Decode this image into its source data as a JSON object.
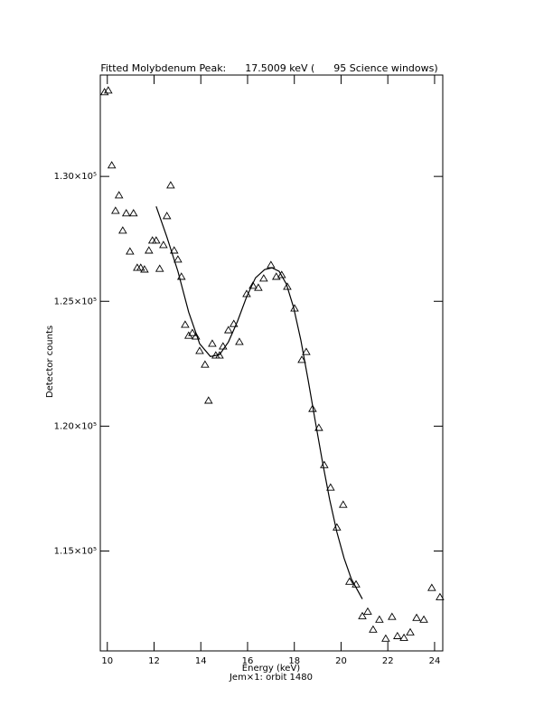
{
  "chart_data": {
    "type": "scatter",
    "title": "Fitted Molybdenum Peak:      17.5009 keV (      95 Science windows)",
    "x_label": "Energy (keV)",
    "subtitle": "Jem×1: orbit 1480",
    "y_label": "Detector counts",
    "xlim": [
      9.7,
      24.35
    ],
    "ylim": [
      111000,
      134060
    ],
    "xticks": [
      10,
      12,
      14,
      16,
      18,
      20,
      22,
      24
    ],
    "yticks": [
      {
        "value": 115000,
        "label": "1.15×10⁵"
      },
      {
        "value": 120000,
        "label": "1.20×10⁵"
      },
      {
        "value": 125000,
        "label": "1.25×10⁵"
      },
      {
        "value": 130000,
        "label": "1.30×10⁵"
      }
    ],
    "series": [
      {
        "color": "#000000",
        "marker": "triangle",
        "x": [
          9.88,
          10.04,
          10.19,
          10.35,
          10.5,
          10.66,
          10.81,
          10.97,
          11.12,
          11.28,
          11.43,
          11.59,
          11.78,
          11.93,
          12.09,
          12.24,
          12.4,
          12.55,
          12.71,
          12.86,
          13.02,
          13.17,
          13.33,
          13.48,
          13.64,
          13.79,
          13.95,
          14.18,
          14.33,
          14.49,
          14.64,
          14.8,
          14.95,
          15.18,
          15.41,
          15.65,
          15.96,
          16.23,
          16.46,
          16.69,
          17.0,
          17.23,
          17.46,
          17.7,
          18.01,
          18.32,
          18.51,
          18.78,
          19.05,
          19.28,
          19.55,
          19.82,
          20.09,
          20.36,
          20.64,
          20.91,
          21.14,
          21.37,
          21.64,
          21.91,
          22.18,
          22.41,
          22.69,
          22.96,
          23.23,
          23.54,
          23.88,
          24.23
        ],
        "values": [
          133370,
          133440,
          130440,
          128620,
          129240,
          127830,
          128520,
          126990,
          128520,
          126340,
          126340,
          126270,
          127030,
          127430,
          127430,
          126300,
          127250,
          128410,
          129640,
          127030,
          126670,
          125980,
          124060,
          123620,
          123730,
          123590,
          123010,
          122460,
          121020,
          123300,
          122830,
          122830,
          123190,
          123840,
          124090,
          123370,
          125290,
          125620,
          125540,
          125910,
          126450,
          125980,
          126050,
          125580,
          124710,
          122650,
          122970,
          120690,
          119930,
          118440,
          117540,
          115940,
          116850,
          113770,
          113660,
          112390,
          112570,
          111850,
          112250,
          111490,
          112360,
          111590,
          111520,
          111740,
          112320,
          112250,
          113520,
          113150
        ]
      },
      {
        "color": "#000000",
        "style": "line",
        "x": [
          12.09,
          12.55,
          13.02,
          13.48,
          13.95,
          14.41,
          14.8,
          15.18,
          15.57,
          15.96,
          16.34,
          16.73,
          17.04,
          17.35,
          17.66,
          17.97,
          18.28,
          18.59,
          18.9,
          19.2,
          19.51,
          19.82,
          20.13,
          20.44,
          20.91
        ],
        "values": [
          128800,
          127570,
          126200,
          124570,
          123300,
          122790,
          122860,
          123370,
          124200,
          125180,
          125940,
          126270,
          126340,
          126200,
          125690,
          124750,
          123440,
          121850,
          120180,
          118590,
          117070,
          115760,
          114710,
          113880,
          113080
        ]
      }
    ]
  }
}
